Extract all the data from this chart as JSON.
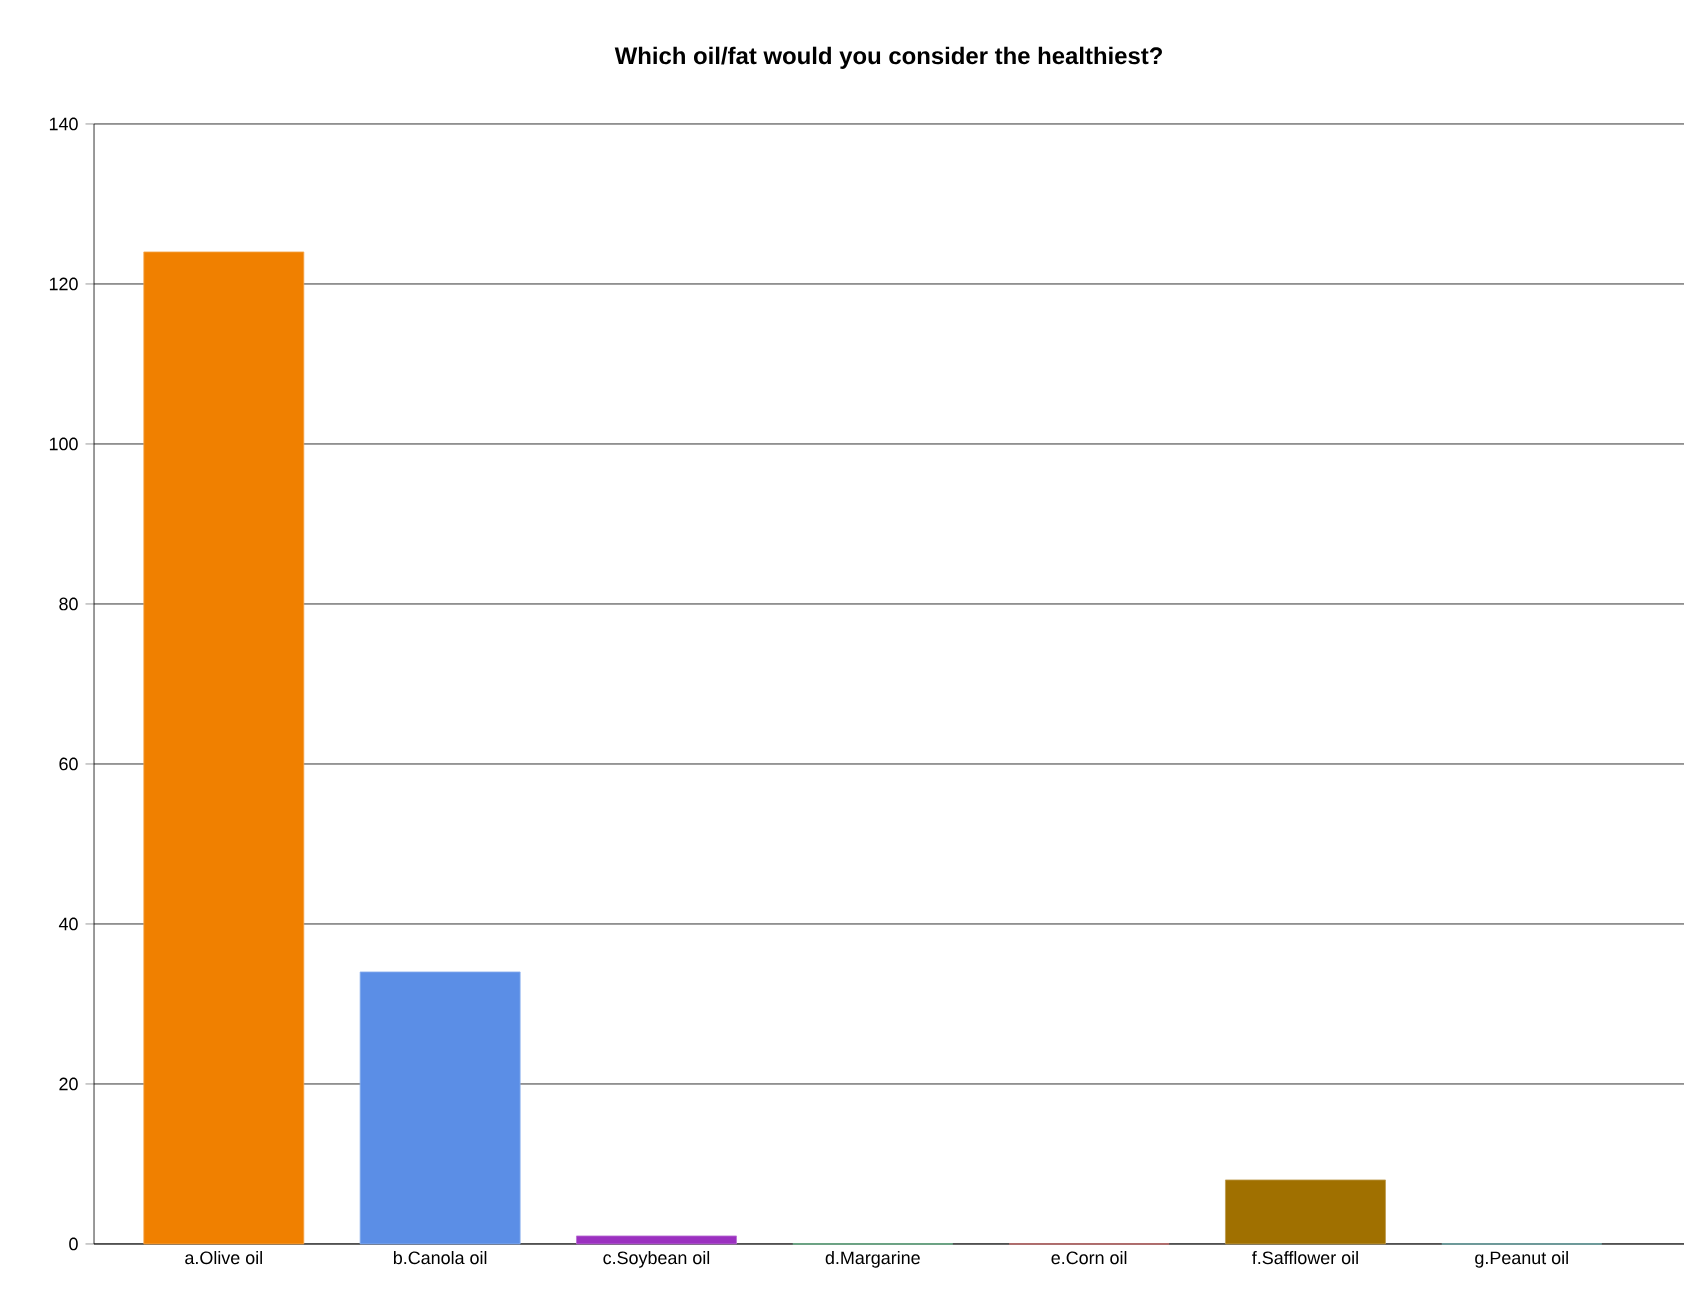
{
  "chart_data": {
    "type": "bar",
    "title": "Which oil/fat would you consider the healthiest?",
    "categories": [
      "a.Olive oil",
      "b.Canola oil",
      "c.Soybean oil",
      "d.Margarine",
      "e.Corn oil",
      "f.Safflower oil",
      "g.Peanut oil"
    ],
    "values": [
      124,
      34,
      1,
      0,
      0,
      8,
      0
    ],
    "colors": [
      "#f08000",
      "#5b8ee6",
      "#9b30c0",
      "#3cb371",
      "#d04040",
      "#a07000",
      "#40a0a0"
    ],
    "ylim": [
      0,
      140
    ],
    "yticks": [
      0,
      20,
      40,
      60,
      80,
      100,
      120,
      140
    ],
    "grid": "y"
  }
}
